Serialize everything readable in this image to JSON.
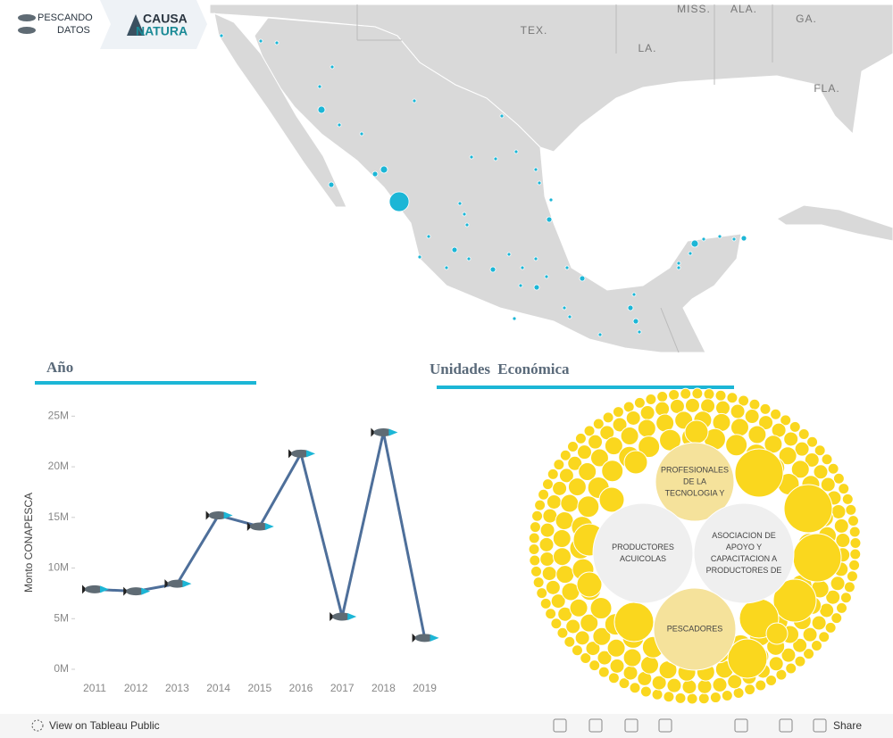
{
  "header": {
    "logo_left": [
      "PESCANDO",
      "DATOS"
    ],
    "logo_right": [
      "CAUSA",
      "NATURA"
    ]
  },
  "map": {
    "labels": [
      "MISS.",
      "ALA.",
      "GA.",
      "TEX.",
      "LA.",
      "FLA."
    ]
  },
  "chart_data": [
    {
      "type": "line",
      "title": "Año",
      "y_label": "Monto CONAPESCA",
      "categories": [
        "2011",
        "2012",
        "2013",
        "2014",
        "2015",
        "2016",
        "2017",
        "2018",
        "2019"
      ],
      "values": [
        7900000,
        7700000,
        8450000,
        15200000,
        14100000,
        21300000,
        5200000,
        23400000,
        3100000
      ],
      "color": "#4e6f9a",
      "ylim": [
        0,
        26000000
      ],
      "yticks": [
        {
          "value": 0,
          "label": "0M"
        },
        {
          "value": 5000000,
          "label": "5M"
        },
        {
          "value": 10000000,
          "label": "10M"
        },
        {
          "value": 15000000,
          "label": "15M"
        },
        {
          "value": 20000000,
          "label": "20M"
        },
        {
          "value": 25000000,
          "label": "25M"
        }
      ],
      "grid": false
    }
  ],
  "bubbles": {
    "title": "Unidades Económica",
    "labels": [
      [
        "PROFESIONALES",
        "DE LA",
        "TECNOLOGIA Y"
      ],
      [
        "PRODUCTORES",
        "ACUICOLAS"
      ],
      [
        "ASOCIACION DE",
        "APOYO Y",
        "CAPACITACION A",
        "PRODUCTORES DE"
      ],
      [
        "PESCADORES"
      ]
    ]
  },
  "toolbar": {
    "view": "View on Tableau Public",
    "share": "Share"
  }
}
